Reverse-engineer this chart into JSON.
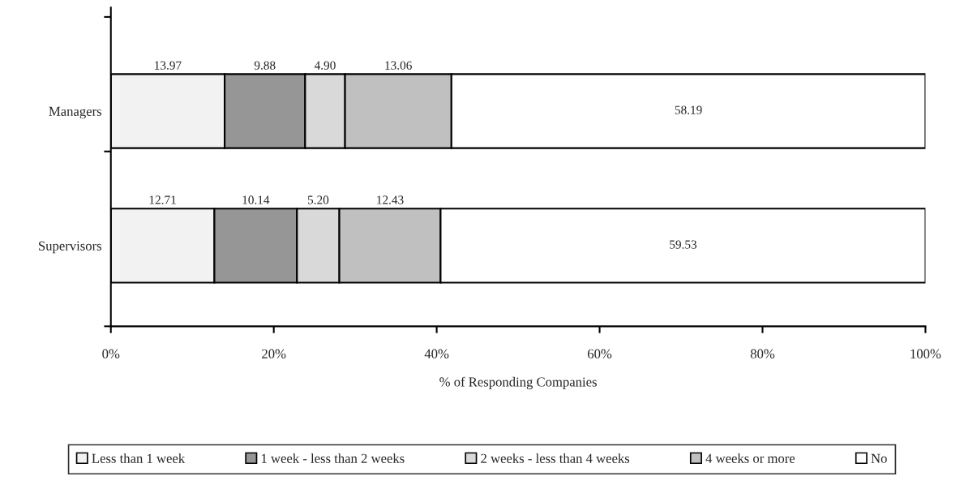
{
  "chart_data": {
    "type": "bar",
    "orientation": "horizontal",
    "stacked": true,
    "xlabel": "% of Responding Companies",
    "categories": [
      "Managers",
      "Supervisors"
    ],
    "series": [
      {
        "name": "Less than 1 week",
        "color": "#f2f2f2",
        "values": [
          13.97,
          12.71
        ],
        "value_labels": [
          "13.97",
          "12.71"
        ]
      },
      {
        "name": "1 week - less than 2 weeks",
        "color": "#969696",
        "values": [
          9.88,
          10.14
        ],
        "value_labels": [
          "9.88",
          "10.14"
        ]
      },
      {
        "name": "2 weeks - less than 4 weeks",
        "color": "#d9d9d9",
        "values": [
          4.9,
          5.2
        ],
        "value_labels": [
          "4.90",
          "5.20"
        ]
      },
      {
        "name": "4 weeks or more",
        "color": "#c0c0c0",
        "values": [
          13.06,
          12.43
        ],
        "value_labels": [
          "13.06",
          "12.43"
        ]
      },
      {
        "name": "No",
        "color": "#ffffff",
        "values": [
          58.19,
          59.53
        ],
        "value_labels": [
          "58.19",
          "59.53"
        ]
      }
    ],
    "xlim": [
      0,
      100
    ],
    "xticks": [
      {
        "value": 0,
        "label": "0%"
      },
      {
        "value": 20,
        "label": "20%"
      },
      {
        "value": 40,
        "label": "40%"
      },
      {
        "value": 60,
        "label": "60%"
      },
      {
        "value": 80,
        "label": "80%"
      },
      {
        "value": 100,
        "label": "100%"
      }
    ],
    "grid": false,
    "legend": "bottom"
  }
}
